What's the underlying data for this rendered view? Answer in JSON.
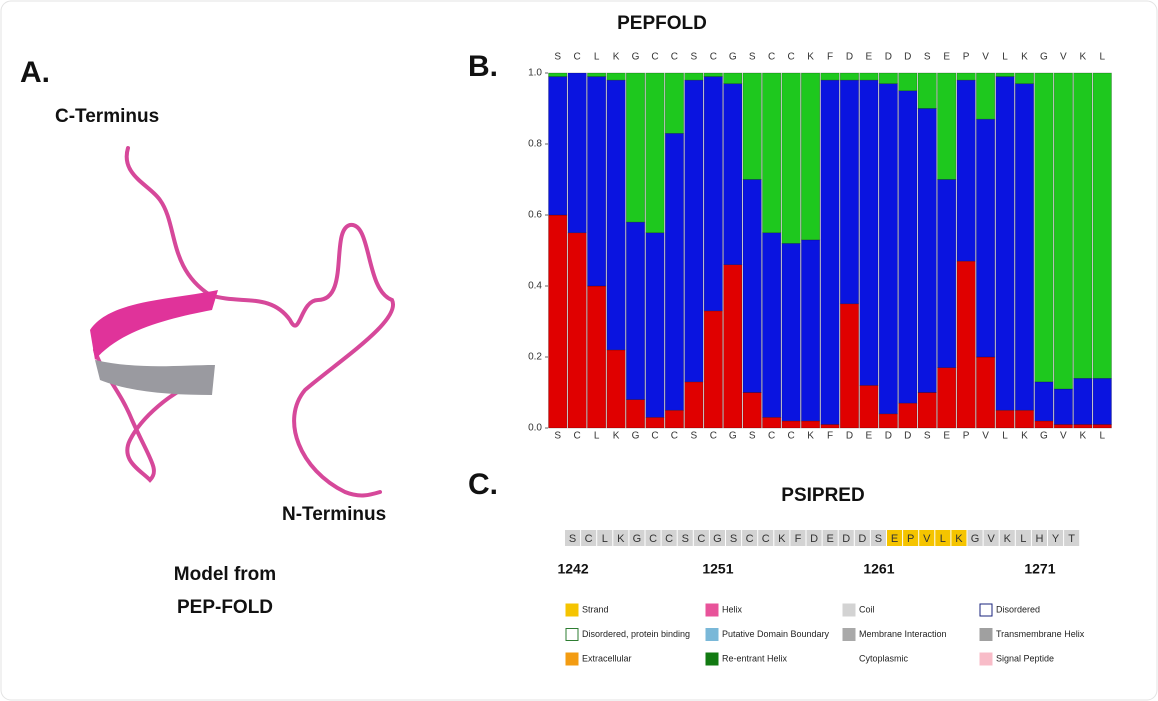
{
  "panel_labels": [
    "A.",
    "B.",
    "C."
  ],
  "model": {
    "c_terminus": "C-Terminus",
    "n_terminus": "N-Terminus",
    "caption": [
      "Model from",
      "PEP-FOLD"
    ]
  },
  "chart_data": {
    "type": "stacked-bar",
    "title": "PEPFOLD",
    "categories": [
      "S",
      "C",
      "L",
      "K",
      "G",
      "C",
      "C",
      "S",
      "C",
      "G",
      "S",
      "C",
      "C",
      "K",
      "F",
      "D",
      "E",
      "D",
      "D",
      "S",
      "E",
      "P",
      "V",
      "L",
      "K",
      "G",
      "V",
      "K",
      "L"
    ],
    "series": [
      {
        "color": "#e00000",
        "values": [
          0.6,
          0.55,
          0.4,
          0.22,
          0.08,
          0.03,
          0.05,
          0.13,
          0.33,
          0.46,
          0.1,
          0.03,
          0.02,
          0.02,
          0.01,
          0.35,
          0.12,
          0.04,
          0.07,
          0.1,
          0.17,
          0.47,
          0.2,
          0.05,
          0.05,
          0.02,
          0.01,
          0.01,
          0.01
        ]
      },
      {
        "color": "#0a14e0",
        "values": [
          0.39,
          0.45,
          0.59,
          0.76,
          0.5,
          0.52,
          0.78,
          0.85,
          0.66,
          0.51,
          0.6,
          0.52,
          0.5,
          0.51,
          0.97,
          0.63,
          0.86,
          0.93,
          0.88,
          0.8,
          0.53,
          0.51,
          0.67,
          0.94,
          0.92,
          0.11,
          0.1,
          0.13,
          0.13
        ]
      },
      {
        "color": "#1ec81e",
        "values": [
          0.01,
          0.0,
          0.01,
          0.02,
          0.42,
          0.45,
          0.17,
          0.02,
          0.01,
          0.03,
          0.3,
          0.45,
          0.48,
          0.47,
          0.02,
          0.02,
          0.02,
          0.03,
          0.05,
          0.1,
          0.3,
          0.02,
          0.13,
          0.01,
          0.03,
          0.87,
          0.89,
          0.86,
          0.86
        ]
      }
    ],
    "ylim": [
      0,
      1
    ],
    "yticks": [
      {
        "value": 0,
        "label": "0.0"
      },
      0.2,
      0.4,
      0.6,
      0.8,
      {
        "value": 1,
        "label": "1.0"
      }
    ]
  },
  "psipred": {
    "title": "PSIPRED",
    "segments": [
      {
        "color": "#d3d3d3",
        "residues": [
          "S",
          "C",
          "L",
          "K",
          "G",
          "C",
          "C",
          "S",
          "C",
          "G",
          "S",
          "C",
          "C",
          "K",
          "F",
          "D",
          "E",
          "D",
          "D",
          "S"
        ]
      },
      {
        "color": "#f5c400",
        "residues": [
          "E",
          "P",
          "V",
          "L",
          "K"
        ]
      },
      {
        "color": "#d3d3d3",
        "residues": [
          "G",
          "V",
          "K",
          "L",
          "H",
          "Y",
          "T"
        ]
      }
    ],
    "positions": [
      1242,
      1251,
      1261,
      1271
    ],
    "legend": [
      {
        "name": "Strand",
        "color": "#f5c400"
      },
      {
        "name": "Helix",
        "color": "#e8539a"
      },
      {
        "name": "Coil",
        "color": "#d3d3d3"
      },
      {
        "name": "Disordered",
        "color": "#1a237e",
        "style": "outline"
      },
      {
        "name": "Disordered, protein binding",
        "color": "#2e7d32",
        "style": "outline"
      },
      {
        "name": "Putative Domain Boundary",
        "color": "#7ab8d8"
      },
      {
        "name": "Membrane Interaction",
        "color": "#a9a9a9"
      },
      {
        "name": "Transmembrane Helix",
        "color": "#a0a0a0"
      },
      {
        "name": "Extracellular",
        "color": "#f39c12"
      },
      {
        "name": "Re-entrant Helix",
        "color": "#127a12"
      },
      {
        "name": "Cytoplasmic"
      },
      {
        "name": "Signal Peptide",
        "color": "#f8bcc8"
      }
    ]
  }
}
